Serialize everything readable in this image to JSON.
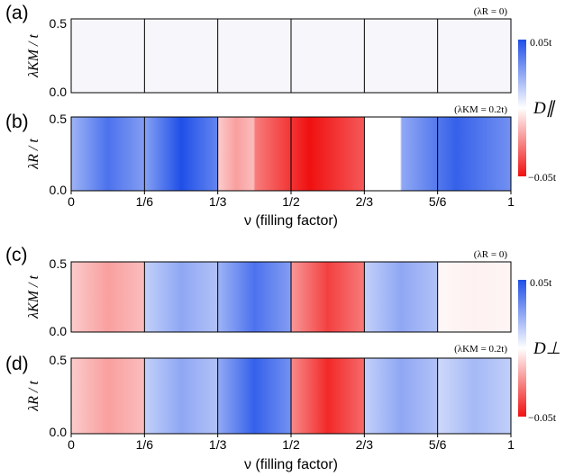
{
  "chart_data": [
    {
      "type": "heatmap",
      "panel_label": "(a)",
      "annotation": "(λR = 0)",
      "ylabel": "λKM / t",
      "xlim": [
        0,
        1
      ],
      "ylim": [
        0,
        0.5
      ],
      "yticks": [
        "0.0",
        "0.5"
      ],
      "x_divisions": [
        0.1667,
        0.3333,
        0.5,
        0.6667,
        0.8333
      ],
      "segments": [
        {
          "xrange": [
            0,
            0.1667
          ],
          "value": 0
        },
        {
          "xrange": [
            0.1667,
            0.3333
          ],
          "value": 0
        },
        {
          "xrange": [
            0.3333,
            0.5
          ],
          "value": 0
        },
        {
          "xrange": [
            0.5,
            0.6667
          ],
          "value": 0
        },
        {
          "xrange": [
            0.6667,
            0.8333
          ],
          "value": 0
        },
        {
          "xrange": [
            0.8333,
            1
          ],
          "value": 0
        }
      ]
    },
    {
      "type": "heatmap",
      "panel_label": "(b)",
      "annotation": "(λKM = 0.2t)",
      "ylabel": "λR / t",
      "xlabel": "ν (filling factor)",
      "xlim": [
        0,
        1
      ],
      "ylim": [
        0,
        0.5
      ],
      "yticks": [
        "0.0",
        "0.5"
      ],
      "xticks": [
        "0",
        "1/6",
        "1/3",
        "1/2",
        "2/3",
        "5/6",
        "1"
      ],
      "colorbar": {
        "label": "D∥",
        "max_label": "0.05t",
        "min_label": "−0.05t"
      },
      "segments": [
        {
          "xrange": [
            0,
            0.1667
          ],
          "value": 0.04
        },
        {
          "xrange": [
            0.1667,
            0.3333
          ],
          "value": 0.05
        },
        {
          "xrange": [
            0.3333,
            0.4167
          ],
          "value": -0.02
        },
        {
          "xrange": [
            0.4167,
            0.6667
          ],
          "value": -0.05
        },
        {
          "xrange": [
            0.6667,
            0.75
          ],
          "value": 0
        },
        {
          "xrange": [
            0.75,
            1
          ],
          "value": 0.045
        }
      ]
    },
    {
      "type": "heatmap",
      "panel_label": "(c)",
      "annotation": "(λR = 0)",
      "ylabel": "λKM / t",
      "xlim": [
        0,
        1
      ],
      "ylim": [
        0,
        0.5
      ],
      "yticks": [
        "0.0",
        "0.5"
      ],
      "segments": [
        {
          "xrange": [
            0,
            0.1667
          ],
          "value": -0.02
        },
        {
          "xrange": [
            0.1667,
            0.3333
          ],
          "value": 0.025
        },
        {
          "xrange": [
            0.3333,
            0.5
          ],
          "value": 0.04
        },
        {
          "xrange": [
            0.5,
            0.6667
          ],
          "value": -0.04
        },
        {
          "xrange": [
            0.6667,
            0.8333
          ],
          "value": 0.025
        },
        {
          "xrange": [
            0.8333,
            1
          ],
          "value": -0.003
        }
      ]
    },
    {
      "type": "heatmap",
      "panel_label": "(d)",
      "annotation": "(λKM = 0.2t)",
      "ylabel": "λR / t",
      "xlabel": "ν (filling factor)",
      "xlim": [
        0,
        1
      ],
      "ylim": [
        0,
        0.5
      ],
      "yticks": [
        "0.0",
        "0.5"
      ],
      "xticks": [
        "0",
        "1/6",
        "1/3",
        "1/2",
        "2/3",
        "5/6",
        "1"
      ],
      "colorbar": {
        "label": "D⊥",
        "max_label": "0.05t",
        "min_label": "−0.05t"
      },
      "segments": [
        {
          "xrange": [
            0,
            0.1667
          ],
          "value": -0.02
        },
        {
          "xrange": [
            0.1667,
            0.3333
          ],
          "value": 0.025
        },
        {
          "xrange": [
            0.3333,
            0.5
          ],
          "value": 0.045
        },
        {
          "xrange": [
            0.5,
            0.6667
          ],
          "value": -0.045
        },
        {
          "xrange": [
            0.6667,
            0.8333
          ],
          "value": 0.025
        },
        {
          "xrange": [
            0.8333,
            1
          ],
          "value": 0.02
        }
      ]
    }
  ],
  "colors": {
    "positive": "#1f4fe8",
    "negative": "#f01010",
    "zero": "#ffffff",
    "frame": "#000000"
  }
}
